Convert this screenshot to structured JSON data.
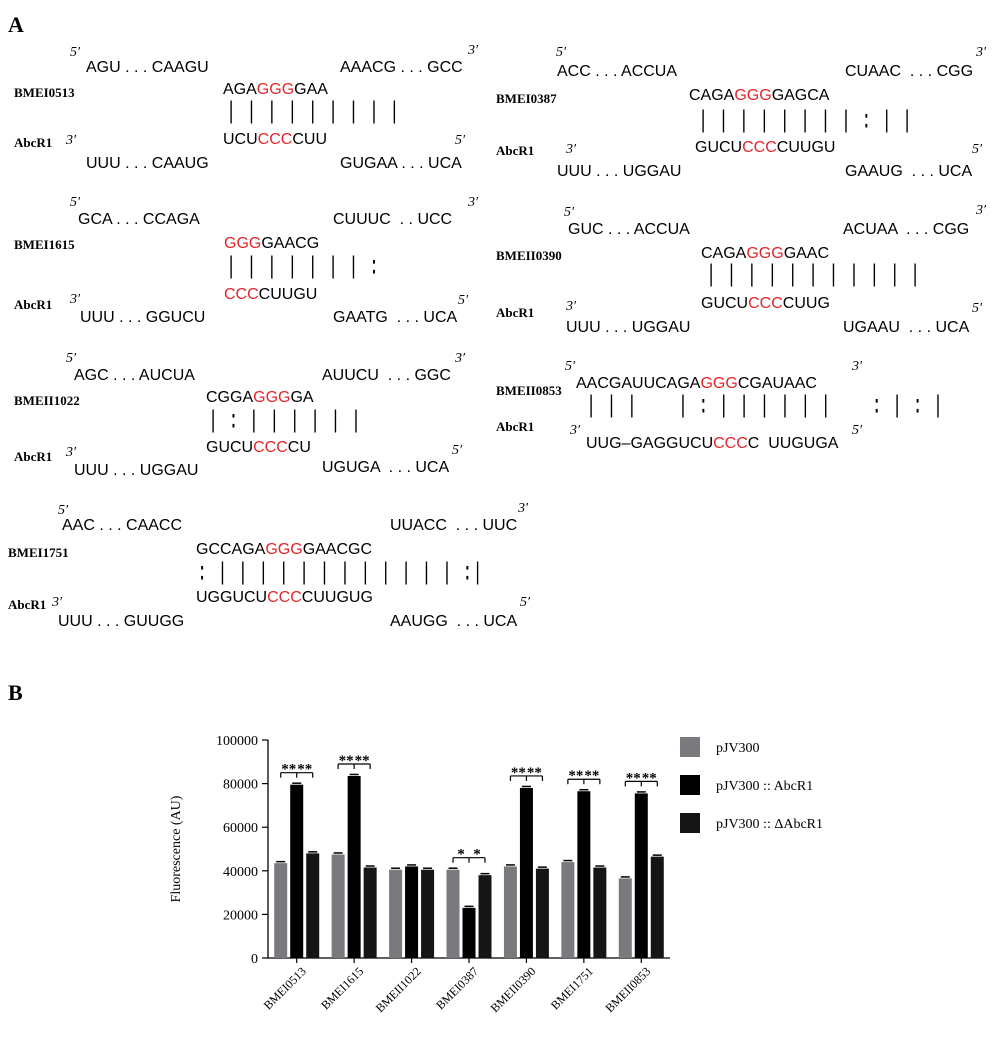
{
  "panels": {
    "a": "A",
    "b": "B"
  },
  "interactions": [
    {
      "target": "BMEI0513",
      "srna": "AbcR1",
      "target_left": "AGU . . . CAAGU",
      "target_right": "AAACG . . . GCC",
      "t_pre": "AGA",
      "t_hl": "GGG",
      "t_post": "GAA",
      "pairs": "| | | | | | | | |",
      "s_pre": "UCU",
      "s_hl": "CCC",
      "s_post": "CUU",
      "srna_left": "UUU . . . CAAUG",
      "srna_right": "GUGAA . . . UCA"
    },
    {
      "target": "BMEI1615",
      "srna": "AbcR1",
      "target_left": "GCA . . . CCAGA",
      "target_right": "CUUUC  . . UCC",
      "t_pre": "",
      "t_hl": "GGG",
      "t_post": "GAACG",
      "pairs": "| | | | | | | :",
      "s_pre": "",
      "s_hl": "CCC",
      "s_post": "CUUGU",
      "srna_left": "UUU . . . GGUCU",
      "srna_right": "GAATG  . . . UCA"
    },
    {
      "target": "BMEII1022",
      "srna": "AbcR1",
      "target_left": "AGC . . . AUCUA",
      "target_right": "AUUCU  . . . GGC",
      "t_pre": "CGGA",
      "t_hl": "GGG",
      "t_post": "GA",
      "pairs": "| : | | | | | |",
      "s_pre": "GUCU",
      "s_hl": "CCC",
      "s_post": "CU",
      "srna_left": "UUU . . . UGGAU",
      "srna_right": "UGUGA  . . . UCA"
    },
    {
      "target": "BMEI1751",
      "srna": "AbcR1",
      "target_left": "AAC . . . CAACC",
      "target_right": "UUACC  . . . UUC",
      "t_pre": "GCCAGA",
      "t_hl": "GGG",
      "t_post": "GAACGC",
      "pairs": ": | | | | | | | | | | | | :|",
      "s_pre": "UGGUCU",
      "s_hl": "CCC",
      "s_post": "CUUGUG",
      "srna_left": "UUU . . . GUUGG",
      "srna_right": "AAUGG  . . . UCA"
    },
    {
      "target": "BMEI0387",
      "srna": "AbcR1",
      "target_left": "ACC . . . ACCUA",
      "target_right": "CUAAC  . . . CGG",
      "t_pre": "CAGA",
      "t_hl": "GGG",
      "t_post": "GAGCA",
      "pairs": "| | | | | | | | : | |",
      "s_pre": "GUCU",
      "s_hl": "CCC",
      "s_post": "CUUGU",
      "srna_left": "UUU . . . UGGAU",
      "srna_right": "GAAUG  . . . UCA"
    },
    {
      "target": "BMEII0390",
      "srna": "AbcR1",
      "target_left": "GUC . . . ACCUA",
      "target_right": "ACUAA  . . . CGG",
      "t_pre": "CAGA",
      "t_hl": "GGG",
      "t_post": "GAAC",
      "pairs": "| | | | | | | | | | |",
      "s_pre": "GUCU",
      "s_hl": "CCC",
      "s_post": "CUUG",
      "srna_left": "UUU . . . UGGAU",
      "srna_right": "UGAAU  . . . UCA"
    },
    {
      "target": "BMEII0853",
      "srna": "AbcR1",
      "t_pre": "AACGAUUCAGA",
      "t_hl": "GGG",
      "t_post": "CGAUAAC",
      "pairs": "| | |    | : | | | | | |    : | : |",
      "s_pre": "UUG–GAGGUCU",
      "s_hl": "CCC",
      "s_post": "C  UUGUGA"
    }
  ],
  "chart_data": {
    "type": "bar",
    "title": "",
    "xlabel": "",
    "ylabel": "Fluorescence (AU)",
    "ylim": [
      0,
      100000
    ],
    "yticks": [
      0,
      20000,
      40000,
      60000,
      80000,
      100000
    ],
    "categories": [
      "BMEI0513",
      "BMEI1615",
      "BMEII1022",
      "BMEI0387",
      "BMEII0390",
      "BMEI1751",
      "BMEII0853"
    ],
    "series": [
      {
        "name": "pJV300",
        "color": "#7a7a7e",
        "values": [
          43500,
          47500,
          40500,
          40500,
          42000,
          44000,
          36500
        ]
      },
      {
        "name": "pJV300 :: AbcR1",
        "color": "#000000",
        "values": [
          79500,
          83500,
          42000,
          23000,
          78000,
          76500,
          75500
        ]
      },
      {
        "name": "pJV300 :: ΔAbcR1",
        "color": "#151515",
        "values": [
          48000,
          41500,
          40500,
          38000,
          41000,
          41500,
          46500
        ]
      }
    ],
    "significance": [
      "** **",
      "** **",
      "",
      "* *",
      "** **",
      "** **",
      "** **"
    ],
    "legend_position": "right"
  }
}
